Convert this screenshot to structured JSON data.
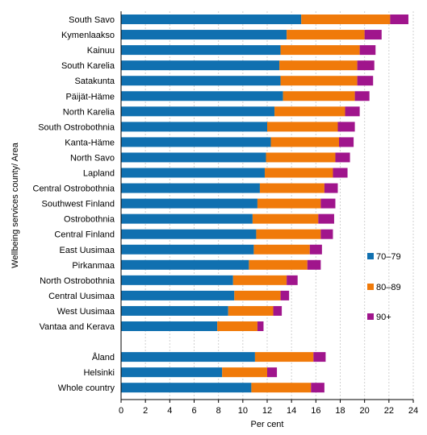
{
  "chart_data": {
    "type": "bar",
    "orientation": "horizontal",
    "stacked": true,
    "categories": [
      "South Savo",
      "Kymenlaakso",
      "Kainuu",
      "South Karelia",
      "Satakunta",
      "Päijät-Häme",
      "North Karelia",
      "South Ostrobothnia",
      "Kanta-Häme",
      "North Savo",
      "Lapland",
      "Central Ostrobothnia",
      "Southwest Finland",
      "Ostrobothnia",
      "Central Finland",
      "East Uusimaa",
      "Pirkanmaa",
      "North Ostrobothnia",
      "Central Uusimaa",
      "West Uusimaa",
      "Vantaa and Kerava",
      "",
      "Åland",
      "Helsinki",
      "Whole country"
    ],
    "series": [
      {
        "name": "70–79",
        "color": "#1070b0",
        "values": [
          14.8,
          13.6,
          13.1,
          13.0,
          13.1,
          13.3,
          12.6,
          12.0,
          12.3,
          11.9,
          11.8,
          11.4,
          11.2,
          10.8,
          11.1,
          10.9,
          10.5,
          9.2,
          9.3,
          8.8,
          7.9,
          null,
          11.0,
          8.3,
          10.7
        ]
      },
      {
        "name": "80–89",
        "color": "#f07a0a",
        "values": [
          7.3,
          6.4,
          6.5,
          6.4,
          6.3,
          5.9,
          5.8,
          5.8,
          5.6,
          5.7,
          5.6,
          5.3,
          5.2,
          5.4,
          5.3,
          4.6,
          4.8,
          4.4,
          3.8,
          3.7,
          3.3,
          null,
          4.8,
          3.7,
          4.9
        ]
      },
      {
        "name": "90+",
        "color": "#a0158c",
        "values": [
          1.5,
          1.4,
          1.3,
          1.4,
          1.3,
          1.2,
          1.2,
          1.4,
          1.2,
          1.2,
          1.2,
          1.1,
          1.2,
          1.3,
          1.0,
          1.0,
          1.1,
          0.9,
          0.7,
          0.7,
          0.5,
          null,
          1.0,
          0.8,
          1.1
        ]
      }
    ],
    "xlabel": "Per cent",
    "ylabel": "Wellbeing services county/ Area",
    "xlim": [
      0,
      24
    ],
    "xticks": [
      "0",
      "2",
      "4",
      "6",
      "8",
      "10",
      "12",
      "14",
      "16",
      "18",
      "20",
      "22",
      "24"
    ],
    "grid": "vertical",
    "legend": "right"
  }
}
